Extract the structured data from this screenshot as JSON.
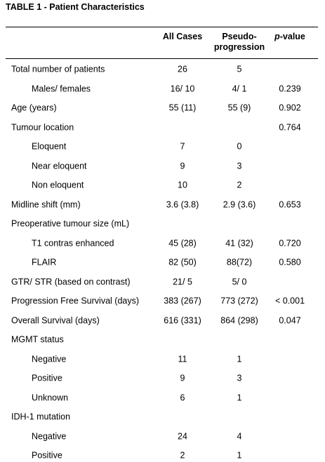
{
  "title": "TABLE 1 - Patient Characteristics",
  "table": {
    "header": [
      "All Cases",
      "Pseudo-progression",
      {
        "italic": "p",
        "rest": "-value"
      }
    ],
    "rows": [
      {
        "label": "Total number of patients",
        "indent": false,
        "cells": [
          "26",
          "5",
          null
        ]
      },
      {
        "label": "Males/ females",
        "indent": true,
        "cells": [
          "16/ 10",
          "4/ 1",
          "0.239"
        ]
      },
      {
        "label": "Age (years)",
        "indent": false,
        "cells": [
          "55 (11)",
          "55 (9)",
          "0.902"
        ]
      },
      {
        "label": "Tumour location",
        "indent": false,
        "cells": [
          null,
          null,
          "0.764"
        ]
      },
      {
        "label": "Eloquent",
        "indent": true,
        "cells": [
          "7",
          "0",
          null
        ]
      },
      {
        "label": "Near eloquent",
        "indent": true,
        "cells": [
          "9",
          "3",
          null
        ]
      },
      {
        "label": "Non eloquent",
        "indent": true,
        "cells": [
          "10",
          "2",
          null
        ]
      },
      {
        "label": "Midline shift (mm)",
        "indent": false,
        "cells": [
          "3.6 (3.8)",
          "2.9 (3.6)",
          "0.653"
        ]
      },
      {
        "label": "Preoperative tumour size (mL)",
        "indent": false,
        "cells": [
          null,
          null,
          null
        ]
      },
      {
        "label": "T1 contras enhanced",
        "indent": true,
        "cells": [
          "45 (28)",
          "41 (32)",
          "0.720"
        ]
      },
      {
        "label": "FLAIR",
        "indent": true,
        "cells": [
          "82 (50)",
          "88(72)",
          "0.580"
        ]
      },
      {
        "label": "GTR/ STR (based on contrast)",
        "indent": false,
        "cells": [
          "21/ 5",
          "5/ 0",
          null
        ]
      },
      {
        "label": "Progression Free Survival (days)",
        "indent": false,
        "cells": [
          "383 (267)",
          "773 (272)",
          "< 0.001"
        ]
      },
      {
        "label": "Overall Survival (days)",
        "indent": false,
        "cells": [
          "616 (331)",
          "864 (298)",
          "0.047"
        ]
      },
      {
        "label": "MGMT status",
        "indent": false,
        "cells": [
          null,
          null,
          null
        ]
      },
      {
        "label": "Negative",
        "indent": true,
        "cells": [
          "11",
          "1",
          null
        ]
      },
      {
        "label": "Positive",
        "indent": true,
        "cells": [
          "9",
          "3",
          null
        ]
      },
      {
        "label": "Unknown",
        "indent": true,
        "cells": [
          "6",
          "1",
          null
        ]
      },
      {
        "label": "IDH-1 mutation",
        "indent": false,
        "cells": [
          null,
          null,
          null
        ]
      },
      {
        "label": "Negative",
        "indent": true,
        "cells": [
          "24",
          "4",
          null
        ]
      },
      {
        "label": "Positive",
        "indent": true,
        "cells": [
          "2",
          "1",
          null
        ]
      }
    ]
  }
}
